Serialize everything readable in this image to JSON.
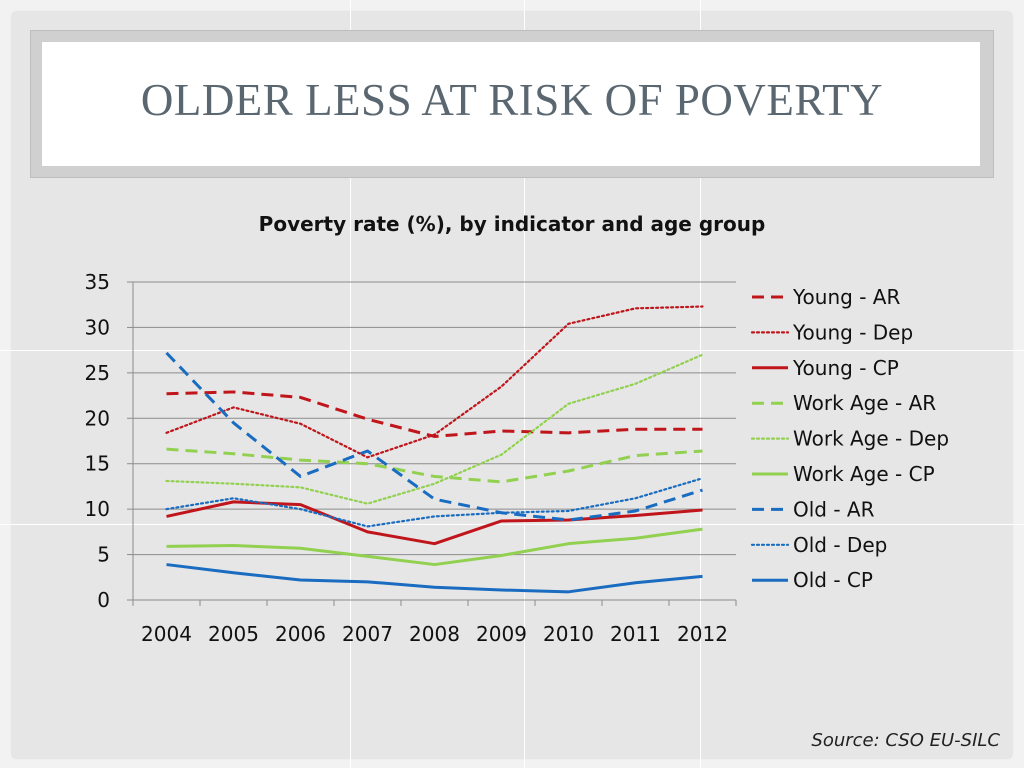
{
  "slide": {
    "title": "OLDER LESS AT RISK OF POVERTY",
    "source": "Source: CSO EU-SILC"
  },
  "chart_data": {
    "type": "line",
    "title": "Poverty rate (%), by indicator and age group",
    "xlabel": "",
    "ylabel": "",
    "categories": [
      "2004",
      "2005",
      "2006",
      "2007",
      "2008",
      "2009",
      "2010",
      "2011",
      "2012"
    ],
    "ylim": [
      0,
      35
    ],
    "yticks": [
      0,
      5,
      10,
      15,
      20,
      25,
      30,
      35
    ],
    "grid": true,
    "legend_position": "right",
    "series": [
      {
        "name": "Young - AR",
        "color": "#c0151b",
        "style": "dashed",
        "values": [
          22.7,
          22.9,
          22.3,
          19.9,
          18.0,
          18.6,
          18.4,
          18.8,
          18.8
        ]
      },
      {
        "name": "Young - Dep",
        "color": "#c0151b",
        "style": "dotted",
        "values": [
          18.4,
          21.2,
          19.4,
          15.7,
          18.2,
          23.5,
          30.4,
          32.1,
          32.3
        ]
      },
      {
        "name": "Young - CP",
        "color": "#c0151b",
        "style": "solid",
        "values": [
          9.2,
          10.8,
          10.5,
          7.5,
          6.2,
          8.7,
          8.8,
          9.3,
          9.9
        ]
      },
      {
        "name": "Work Age - AR",
        "color": "#92d050",
        "style": "dashed",
        "values": [
          16.6,
          16.1,
          15.4,
          15.0,
          13.6,
          13.0,
          14.2,
          15.9,
          16.4
        ]
      },
      {
        "name": "Work Age - Dep",
        "color": "#92d050",
        "style": "dotted",
        "values": [
          13.1,
          12.8,
          12.4,
          10.6,
          12.8,
          16.0,
          21.6,
          23.8,
          27.0
        ]
      },
      {
        "name": "Work Age - CP",
        "color": "#92d050",
        "style": "solid",
        "values": [
          5.9,
          6.0,
          5.7,
          4.8,
          3.9,
          4.9,
          6.2,
          6.8,
          7.8
        ]
      },
      {
        "name": "Old - AR",
        "color": "#1a6cc0",
        "style": "dashed",
        "values": [
          27.2,
          19.5,
          13.6,
          16.4,
          11.1,
          9.6,
          8.8,
          9.8,
          12.1
        ]
      },
      {
        "name": "Old - Dep",
        "color": "#1a6cc0",
        "style": "dotted",
        "values": [
          10.0,
          11.2,
          10.0,
          8.1,
          9.2,
          9.6,
          9.8,
          11.2,
          13.4
        ]
      },
      {
        "name": "Old - CP",
        "color": "#1a6cc0",
        "style": "solid",
        "values": [
          3.9,
          3.0,
          2.2,
          2.0,
          1.4,
          1.1,
          0.9,
          1.9,
          2.6
        ]
      }
    ]
  }
}
